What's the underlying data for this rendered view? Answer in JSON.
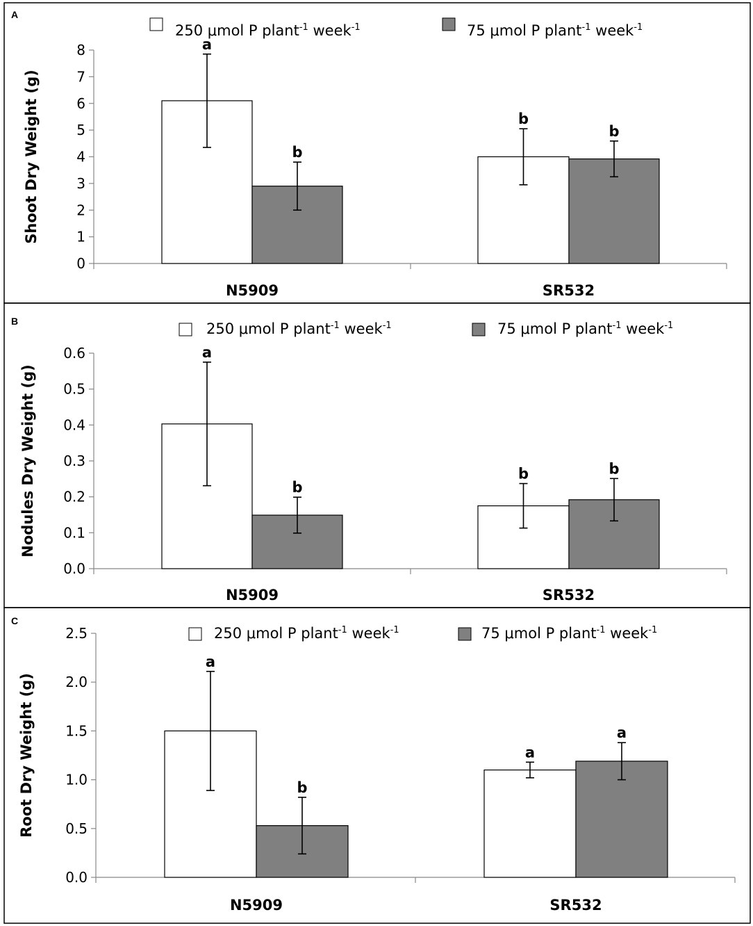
{
  "colors": {
    "series1_fill": "#ffffff",
    "series2_fill": "#808080",
    "stroke": "#000000",
    "frame": "#000000"
  },
  "chart_data": [
    {
      "type": "bar",
      "panel": "A",
      "title": "",
      "xlabel": "",
      "ylabel": "Shoot Dry Weight (g)",
      "categories": [
        "N5909",
        "SR532"
      ],
      "ylim": [
        0,
        8
      ],
      "yticks": [
        0,
        1,
        2,
        3,
        4,
        5,
        6,
        7,
        8
      ],
      "tick_decimals": 0,
      "legend": {
        "placement": "top",
        "unit": "μmol P plant",
        "exp1": "-1",
        "mid": " week",
        "exp2": "-1"
      },
      "series": [
        {
          "name": "250 μmol P plant-1 week-1",
          "legend_value": "250",
          "values": [
            6.1,
            4.0
          ],
          "errors": [
            1.75,
            1.05
          ],
          "sig": [
            "a",
            "b"
          ]
        },
        {
          "name": "75 μmol P plant-1 week-1",
          "legend_value": "75",
          "values": [
            2.9,
            3.92
          ],
          "errors": [
            0.9,
            0.67
          ],
          "sig": [
            "b",
            "b"
          ]
        }
      ]
    },
    {
      "type": "bar",
      "panel": "B",
      "title": "",
      "xlabel": "",
      "ylabel": "Nodules Dry Weight (g)",
      "categories": [
        "N5909",
        "SR532"
      ],
      "ylim": [
        0,
        0.6
      ],
      "yticks": [
        0.0,
        0.1,
        0.2,
        0.3,
        0.4,
        0.5,
        0.6
      ],
      "tick_decimals": 1,
      "legend": {
        "placement": "top",
        "unit": "μmol P plant",
        "exp1": "-1",
        "mid": " week",
        "exp2": "-1"
      },
      "series": [
        {
          "name": "250 μmol P plant-1 week-1",
          "legend_value": "250",
          "values": [
            0.403,
            0.175
          ],
          "errors": [
            0.172,
            0.062
          ],
          "sig": [
            "a",
            "b"
          ]
        },
        {
          "name": "75 μmol P plant-1 week-1",
          "legend_value": "75",
          "values": [
            0.149,
            0.192
          ],
          "errors": [
            0.05,
            0.059
          ],
          "sig": [
            "b",
            "b"
          ]
        }
      ]
    },
    {
      "type": "bar",
      "panel": "C",
      "title": "",
      "xlabel": "",
      "ylabel": "Root Dry Weight (g)",
      "categories": [
        "N5909",
        "SR532"
      ],
      "ylim": [
        0,
        2.5
      ],
      "yticks": [
        0.0,
        0.5,
        1.0,
        1.5,
        2.0,
        2.5
      ],
      "tick_decimals": 1,
      "legend": {
        "placement": "top",
        "unit": "μmol P plant",
        "exp1": "-1",
        "mid": " week",
        "exp2": "-1"
      },
      "series": [
        {
          "name": "250 μmol P plant-1 week-1",
          "legend_value": "250",
          "values": [
            1.5,
            1.1
          ],
          "errors": [
            0.61,
            0.08
          ],
          "sig": [
            "a",
            "a"
          ]
        },
        {
          "name": "75 μmol P plant-1 week-1",
          "legend_value": "75",
          "values": [
            0.53,
            1.19
          ],
          "errors": [
            0.29,
            0.19
          ],
          "sig": [
            "b",
            "a"
          ]
        }
      ]
    }
  ]
}
